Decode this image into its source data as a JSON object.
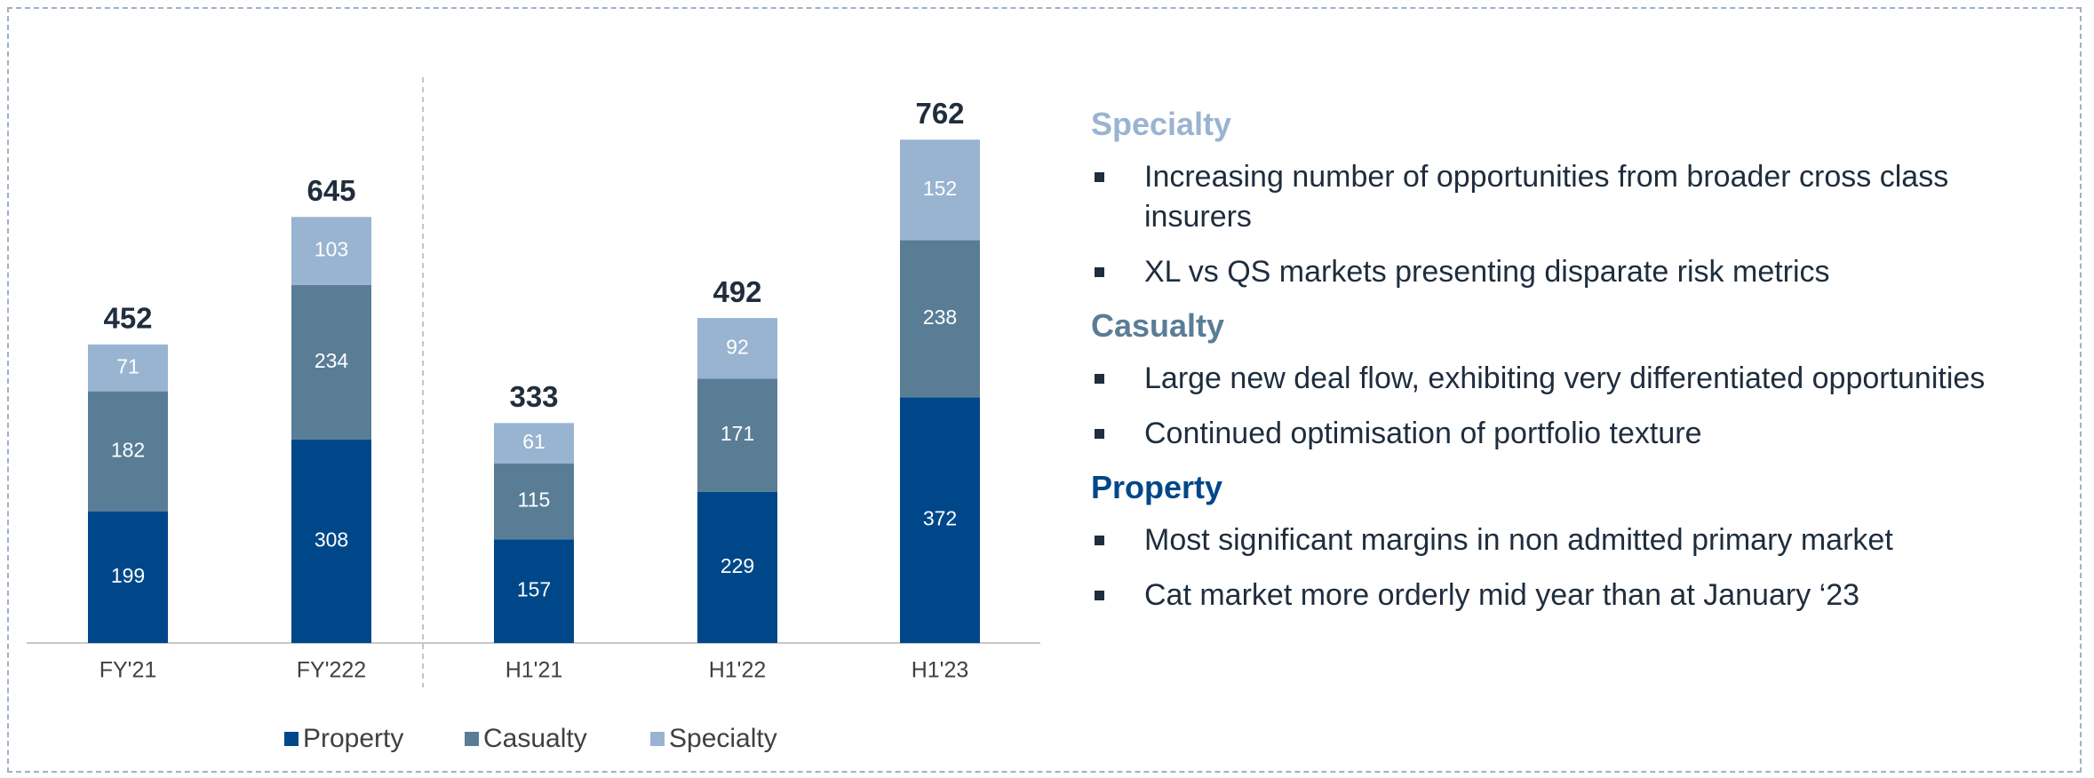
{
  "chart_data": {
    "type": "stacked_bar",
    "categories": [
      "FY'21",
      "FY'222",
      "H1'21",
      "H1'22",
      "H1'23"
    ],
    "series": [
      {
        "name": "Property",
        "color": "#00478a",
        "values": [
          199,
          308,
          157,
          229,
          372
        ]
      },
      {
        "name": "Casualty",
        "color": "#5a7d96",
        "values": [
          182,
          234,
          115,
          171,
          238
        ]
      },
      {
        "name": "Specialty",
        "color": "#99b4d1",
        "values": [
          71,
          103,
          61,
          92,
          152
        ]
      }
    ],
    "totals": [
      452,
      645,
      333,
      492,
      762
    ],
    "ylim": [
      0,
      800
    ],
    "legend": "bottom"
  },
  "panel": {
    "sections": [
      {
        "heading": "Specialty",
        "color": "#99b4d1",
        "bullets": [
          "Increasing number of opportunities from broader cross class insurers",
          "XL vs QS markets presenting disparate risk metrics"
        ]
      },
      {
        "heading": "Casualty",
        "color": "#5a7d96",
        "bullets": [
          "Large new deal flow, exhibiting very differentiated opportunities",
          "Continued optimisation of portfolio texture"
        ]
      },
      {
        "heading": "Property",
        "color": "#00478a",
        "bullets": [
          "Most significant margins in non admitted primary market",
          "Cat market more orderly mid year than at January ‘23"
        ]
      }
    ]
  }
}
